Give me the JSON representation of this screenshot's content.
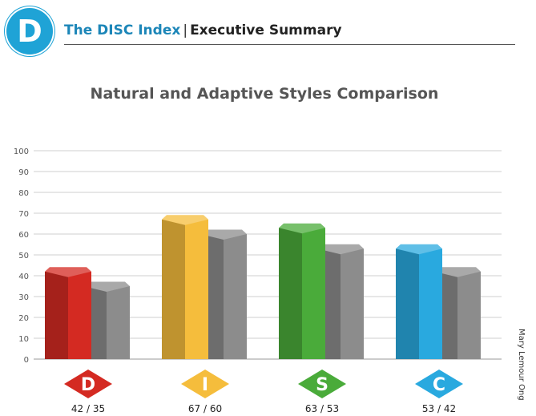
{
  "header": {
    "logo_letter": "D",
    "brand": "The DISC Index",
    "separator": "|",
    "section": "Executive Summary"
  },
  "chart_title": "Natural and Adaptive Styles Comparison",
  "side_text": "Mary Lemour Ong",
  "colors": {
    "accent": "#1fa3d6",
    "adaptive": "#8c8c8c",
    "D": "#d42a22",
    "I": "#f5bd3c",
    "S": "#4aab3a",
    "C": "#29a9df"
  },
  "chart_data": {
    "type": "bar",
    "title": "Natural and Adaptive Styles Comparison",
    "ylim": [
      0,
      100
    ],
    "yticks": [
      0,
      10,
      20,
      30,
      40,
      50,
      60,
      70,
      80,
      90,
      100
    ],
    "grid": true,
    "categories": [
      "D",
      "I",
      "S",
      "C"
    ],
    "series": [
      {
        "values": [
          42,
          67,
          63,
          53
        ]
      },
      {
        "values": [
          35,
          60,
          53,
          42
        ]
      }
    ],
    "labels": [
      "42 / 35",
      "67 / 60",
      "63 / 53",
      "53 / 42"
    ]
  }
}
